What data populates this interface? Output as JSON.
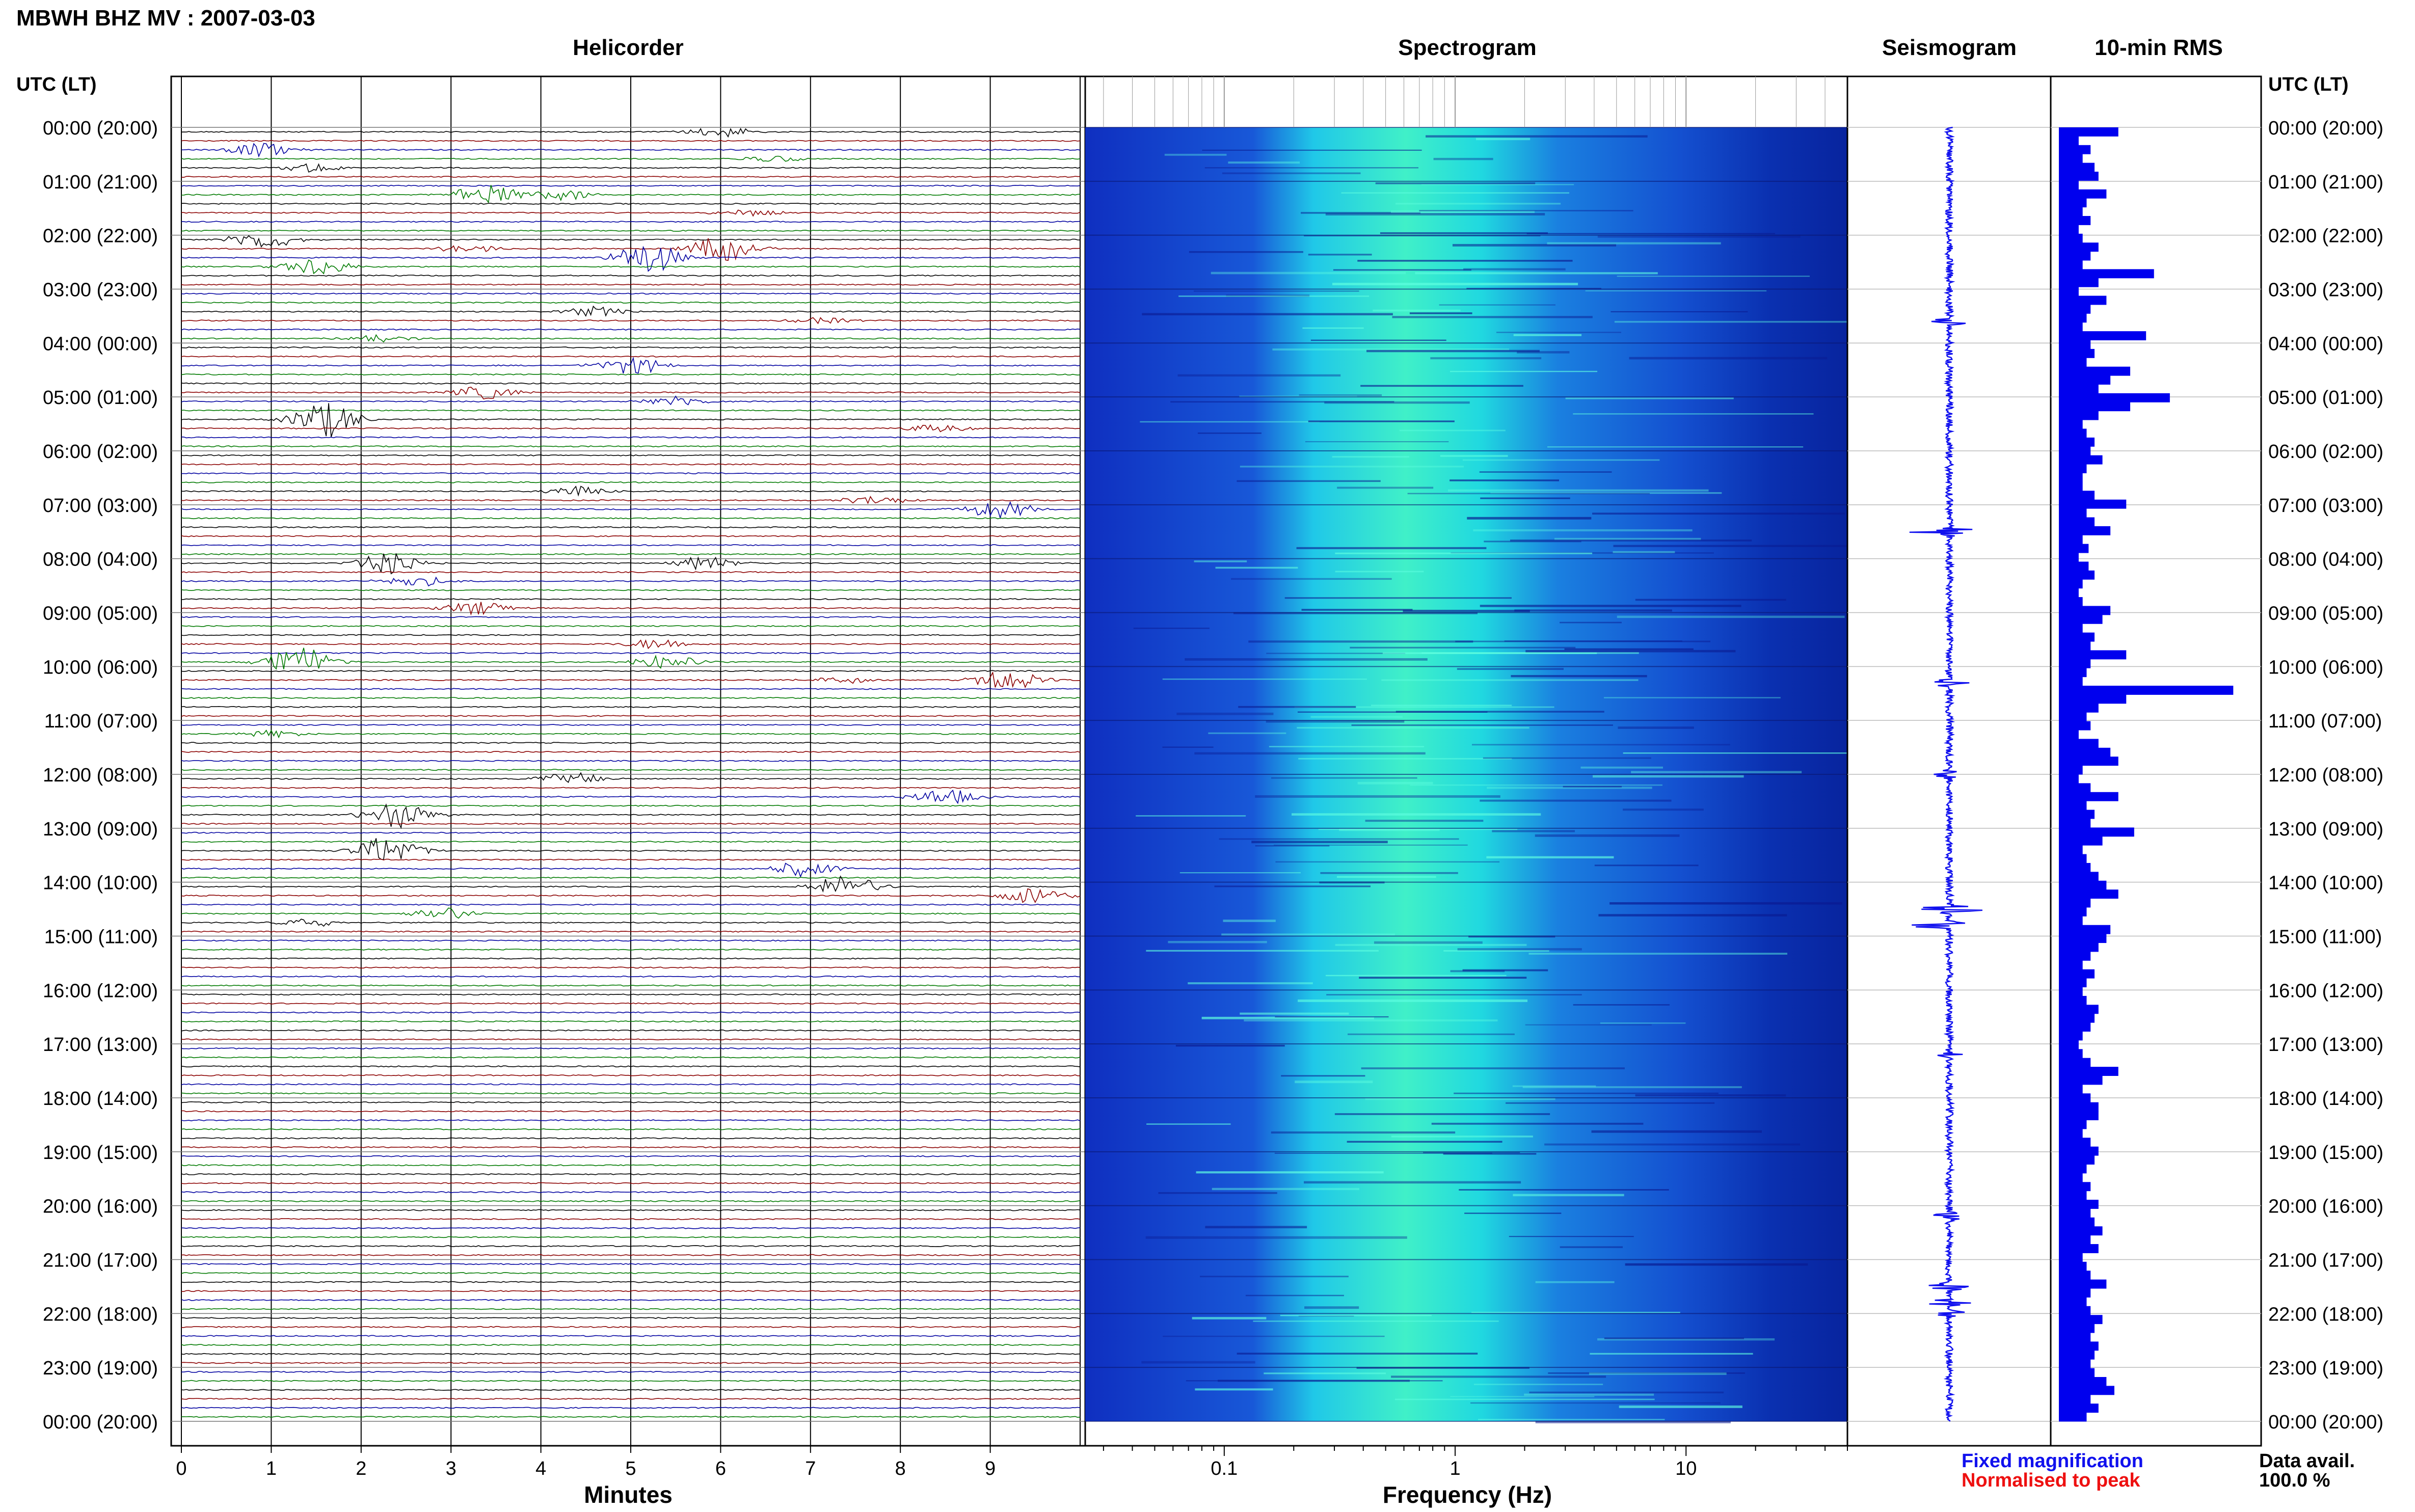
{
  "header": {
    "title": "MBWH BHZ MV : 2007-03-03",
    "utc_label": "UTC (LT)",
    "panel_titles": {
      "helicorder": "Helicorder",
      "spectrogram": "Spectrogram",
      "seismogram": "Seismogram",
      "rms": "10-min RMS"
    }
  },
  "legend": {
    "fixed": "Fixed magnification",
    "normalised": "Normalised to peak",
    "fixed_color": "#1010ee",
    "normalised_color": "#ee1010"
  },
  "data_avail": {
    "label": "Data avail.",
    "value": "100.0 %"
  },
  "colors": {
    "trace_cycle": [
      "#000000",
      "#8b0000",
      "#0000a0",
      "#007a00"
    ],
    "rms_bar": "#0000ee",
    "spectrogram_low": "#0a1ea8",
    "spectrogram_high": "#30ffd0"
  },
  "chart_data": [
    {
      "type": "line",
      "panel": "helicorder",
      "title": "Helicorder",
      "xlabel": "Minutes",
      "x_ticks": [
        "0",
        "1",
        "2",
        "3",
        "4",
        "5",
        "6",
        "7",
        "8",
        "9"
      ],
      "xlim": [
        0,
        10
      ],
      "time_labels": [
        "00:00 (20:00)",
        "01:00 (21:00)",
        "02:00 (22:00)",
        "03:00 (23:00)",
        "04:00 (00:00)",
        "05:00 (01:00)",
        "06:00 (02:00)",
        "07:00 (03:00)",
        "08:00 (04:00)",
        "09:00 (05:00)",
        "10:00 (06:00)",
        "11:00 (07:00)",
        "12:00 (08:00)",
        "13:00 (09:00)",
        "14:00 (10:00)",
        "15:00 (11:00)",
        "16:00 (12:00)",
        "17:00 (13:00)",
        "18:00 (14:00)",
        "19:00 (15:00)",
        "20:00 (16:00)",
        "21:00 (17:00)",
        "22:00 (18:00)",
        "23:00 (19:00)",
        "00:00 (20:00)"
      ],
      "rows_per_hour": 6,
      "events": [
        {
          "row": 0,
          "minute": 6.0,
          "amp": 0.45
        },
        {
          "row": 2,
          "minute": 0.9,
          "amp": 0.6
        },
        {
          "row": 3,
          "minute": 6.6,
          "amp": 0.3
        },
        {
          "row": 4,
          "minute": 1.4,
          "amp": 0.4
        },
        {
          "row": 7,
          "minute": 3.4,
          "amp": 0.9
        },
        {
          "row": 7,
          "minute": 4.2,
          "amp": 0.5
        },
        {
          "row": 9,
          "minute": 6.3,
          "amp": 0.3
        },
        {
          "row": 12,
          "minute": 0.9,
          "amp": 0.8
        },
        {
          "row": 13,
          "minute": 6.0,
          "amp": 1.1
        },
        {
          "row": 13,
          "minute": 3.2,
          "amp": 0.35
        },
        {
          "row": 14,
          "minute": 5.2,
          "amp": 1.4
        },
        {
          "row": 15,
          "minute": 1.5,
          "amp": 0.8
        },
        {
          "row": 20,
          "minute": 4.6,
          "amp": 0.45
        },
        {
          "row": 21,
          "minute": 7.1,
          "amp": 0.3
        },
        {
          "row": 23,
          "minute": 2.2,
          "amp": 0.35
        },
        {
          "row": 26,
          "minute": 5.0,
          "amp": 0.8
        },
        {
          "row": 29,
          "minute": 3.4,
          "amp": 0.6
        },
        {
          "row": 30,
          "minute": 5.5,
          "amp": 0.45
        },
        {
          "row": 32,
          "minute": 1.6,
          "amp": 1.6
        },
        {
          "row": 33,
          "minute": 8.4,
          "amp": 0.4
        },
        {
          "row": 40,
          "minute": 4.4,
          "amp": 0.5
        },
        {
          "row": 41,
          "minute": 7.7,
          "amp": 0.4
        },
        {
          "row": 42,
          "minute": 9.1,
          "amp": 0.8
        },
        {
          "row": 48,
          "minute": 2.3,
          "amp": 0.9
        },
        {
          "row": 48,
          "minute": 5.8,
          "amp": 0.6
        },
        {
          "row": 50,
          "minute": 2.6,
          "amp": 0.5
        },
        {
          "row": 53,
          "minute": 3.3,
          "amp": 0.6
        },
        {
          "row": 57,
          "minute": 5.3,
          "amp": 0.5
        },
        {
          "row": 59,
          "minute": 1.3,
          "amp": 1.4
        },
        {
          "row": 59,
          "minute": 5.4,
          "amp": 0.7
        },
        {
          "row": 61,
          "minute": 7.4,
          "amp": 0.35
        },
        {
          "row": 61,
          "minute": 9.2,
          "amp": 0.9
        },
        {
          "row": 67,
          "minute": 1.0,
          "amp": 0.3
        },
        {
          "row": 72,
          "minute": 4.3,
          "amp": 0.6
        },
        {
          "row": 74,
          "minute": 8.5,
          "amp": 0.7
        },
        {
          "row": 76,
          "minute": 2.4,
          "amp": 1.2
        },
        {
          "row": 80,
          "minute": 2.3,
          "amp": 1.3
        },
        {
          "row": 82,
          "minute": 6.9,
          "amp": 0.7
        },
        {
          "row": 84,
          "minute": 7.4,
          "amp": 1.0
        },
        {
          "row": 85,
          "minute": 9.5,
          "amp": 0.8
        },
        {
          "row": 87,
          "minute": 2.9,
          "amp": 0.6
        },
        {
          "row": 88,
          "minute": 1.4,
          "amp": 0.4
        }
      ]
    },
    {
      "type": "heatmap",
      "panel": "spectrogram",
      "title": "Spectrogram",
      "xlabel": "Frequency (Hz)",
      "x_scale": "log",
      "xlim": [
        0.025,
        50
      ],
      "x_tick_labels": [
        {
          "value": 0.1,
          "label": "0.1"
        },
        {
          "value": 1,
          "label": "1"
        },
        {
          "value": 10,
          "label": "10"
        }
      ],
      "peak_band_hz": [
        0.2,
        1.0
      ]
    },
    {
      "type": "line",
      "panel": "seismogram",
      "title": "Seismogram",
      "bursts": [
        {
          "hour": 3.6,
          "amp": 0.7
        },
        {
          "hour": 7.5,
          "amp": 1.0
        },
        {
          "hour": 10.3,
          "amp": 0.5
        },
        {
          "hour": 12.0,
          "amp": 0.4
        },
        {
          "hour": 14.5,
          "amp": 1.0
        },
        {
          "hour": 14.8,
          "amp": 0.8
        },
        {
          "hour": 17.2,
          "amp": 0.3
        },
        {
          "hour": 20.2,
          "amp": 0.6
        },
        {
          "hour": 21.5,
          "amp": 0.5
        },
        {
          "hour": 21.8,
          "amp": 0.6
        },
        {
          "hour": 22.0,
          "amp": 0.4
        }
      ]
    },
    {
      "type": "bar",
      "panel": "rms",
      "title": "10-min RMS",
      "orientation": "horizontal",
      "bin_minutes": 10,
      "values": [
        0.3,
        0.1,
        0.16,
        0.12,
        0.18,
        0.2,
        0.1,
        0.24,
        0.14,
        0.12,
        0.16,
        0.1,
        0.12,
        0.2,
        0.16,
        0.12,
        0.48,
        0.2,
        0.1,
        0.24,
        0.16,
        0.14,
        0.12,
        0.44,
        0.16,
        0.18,
        0.14,
        0.36,
        0.26,
        0.2,
        0.56,
        0.36,
        0.2,
        0.12,
        0.14,
        0.18,
        0.16,
        0.22,
        0.14,
        0.12,
        0.12,
        0.18,
        0.34,
        0.14,
        0.18,
        0.26,
        0.12,
        0.15,
        0.1,
        0.15,
        0.18,
        0.12,
        0.1,
        0.12,
        0.26,
        0.22,
        0.12,
        0.18,
        0.16,
        0.34,
        0.16,
        0.14,
        0.12,
        0.88,
        0.34,
        0.2,
        0.14,
        0.16,
        0.1,
        0.2,
        0.26,
        0.3,
        0.12,
        0.1,
        0.16,
        0.3,
        0.14,
        0.18,
        0.16,
        0.38,
        0.22,
        0.12,
        0.14,
        0.16,
        0.2,
        0.24,
        0.3,
        0.16,
        0.14,
        0.12,
        0.26,
        0.24,
        0.2,
        0.16,
        0.12,
        0.18,
        0.14,
        0.12,
        0.14,
        0.2,
        0.18,
        0.16,
        0.12,
        0.1,
        0.12,
        0.16,
        0.3,
        0.22,
        0.12,
        0.16,
        0.2,
        0.2,
        0.14,
        0.12,
        0.16,
        0.2,
        0.18,
        0.14,
        0.12,
        0.16,
        0.14,
        0.2,
        0.16,
        0.18,
        0.22,
        0.16,
        0.2,
        0.12,
        0.14,
        0.16,
        0.24,
        0.16,
        0.14,
        0.16,
        0.22,
        0.18,
        0.16,
        0.2,
        0.18,
        0.16,
        0.18,
        0.24,
        0.28,
        0.16,
        0.2,
        0.14
      ],
      "xlim": [
        0,
        1
      ]
    }
  ]
}
